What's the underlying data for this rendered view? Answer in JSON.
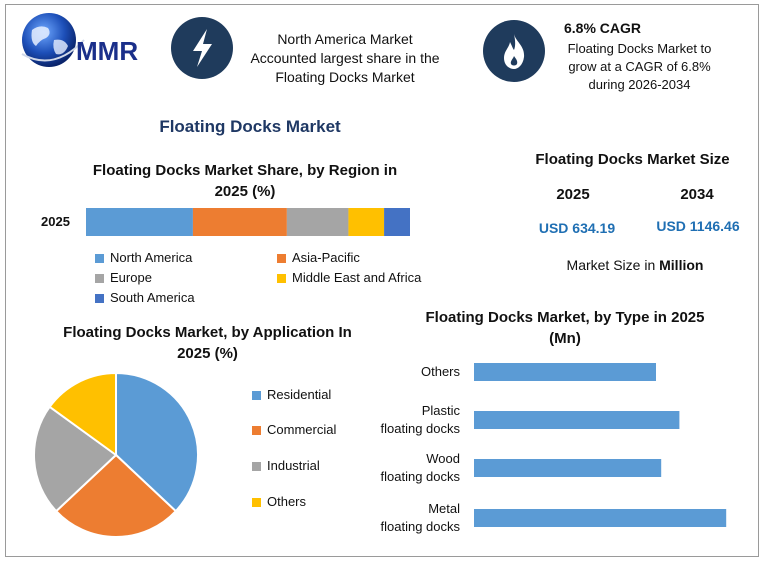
{
  "logo": {
    "text": "MMR"
  },
  "header": {
    "left_text": [
      "North America Market",
      "Accounted largest share in the",
      "Floating Docks Market"
    ],
    "right_title": "6.8% CAGR",
    "right_text": [
      "Floating Docks Market to",
      "grow at a CAGR of 6.8%",
      "during 2026-2034"
    ]
  },
  "main_title": "Floating Docks Market",
  "market_size": {
    "title": "Floating Docks Market Size",
    "year1": "2025",
    "year2": "2034",
    "value1": "USD 634.19",
    "value2": "USD 1146.46",
    "unit_note_prefix": "Market Size in ",
    "unit_note_bold": "Million"
  },
  "colors": {
    "north_america": "#5b9bd5",
    "asia_pacific": "#ed7d31",
    "europe": "#a5a5a5",
    "mea": "#ffc000",
    "south_america": "#4472c4",
    "bar_type": "#5b9bd5",
    "dark_navy": "#1f3b5c",
    "title_navy": "#1f3864"
  },
  "chart_data": [
    {
      "type": "bar",
      "orientation": "horizontal-stacked",
      "title": "Floating Docks Market Share, by Region in 2025 (%)",
      "categories": [
        "2025"
      ],
      "series": [
        {
          "name": "North America",
          "values": [
            33
          ]
        },
        {
          "name": "Asia-Pacific",
          "values": [
            29
          ]
        },
        {
          "name": "Europe",
          "values": [
            19
          ]
        },
        {
          "name": "Middle East and Africa",
          "values": [
            11
          ]
        },
        {
          "name": "South America",
          "values": [
            8
          ]
        }
      ],
      "legend": "bottom"
    },
    {
      "type": "pie",
      "title": "Floating Docks Market, by Application In 2025 (%)",
      "categories": [
        "Residential",
        "Commercial",
        "Industrial",
        "Others"
      ],
      "values": [
        37,
        26,
        22,
        15
      ],
      "legend": "right"
    },
    {
      "type": "bar",
      "orientation": "horizontal",
      "title": "Floating Docks Market, by Type in 2025 (Mn)",
      "categories": [
        "Others",
        "Plastic floating docks",
        "Wood floating docks",
        "Metal floating docks"
      ],
      "category_lines": [
        [
          "Others"
        ],
        [
          "Plastic",
          "floating docks"
        ],
        [
          "Wood",
          "floating docks"
        ],
        [
          "Metal",
          "floating docks"
        ]
      ],
      "values": [
        140,
        158,
        144,
        194
      ],
      "xlim": [
        0,
        200
      ]
    }
  ]
}
